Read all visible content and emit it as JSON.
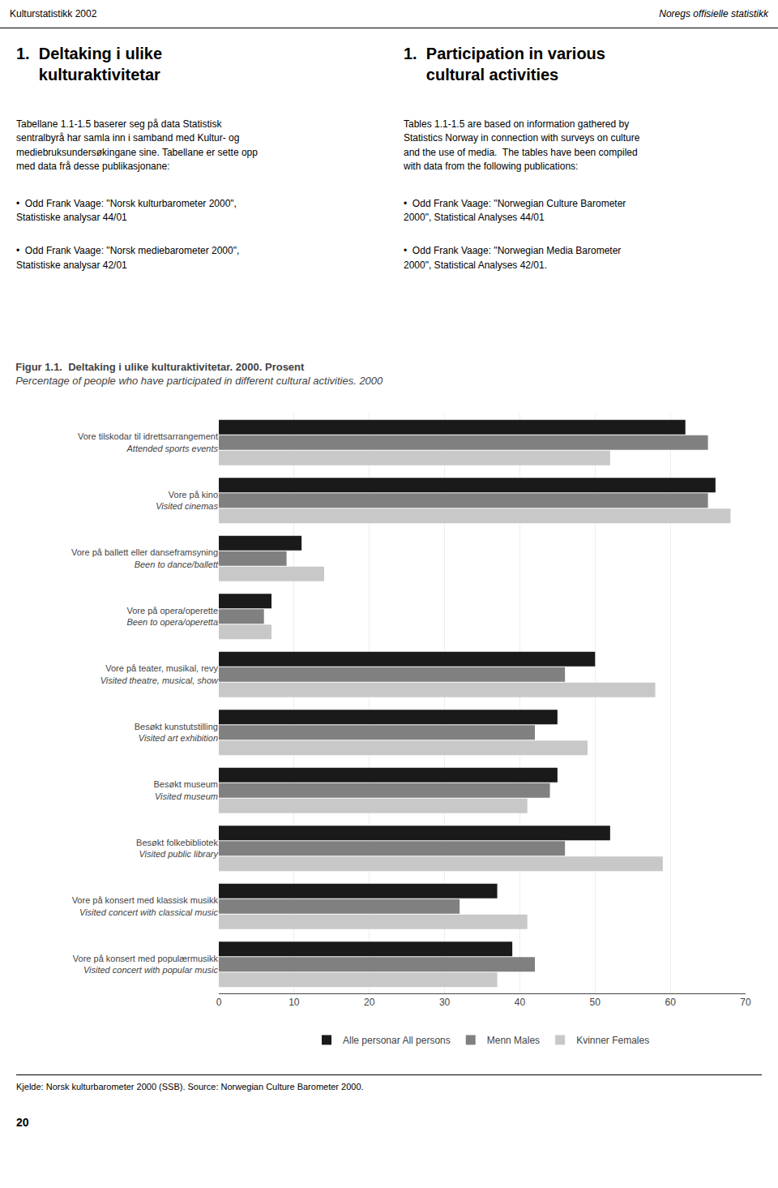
{
  "chart_data": {
    "type": "bar",
    "orientation": "horizontal",
    "title": "Figur 1.1.  Deltaking i ulike kulturaktivitetar. 2000. Prosent",
    "subtitle": "Percentage of people who have participated in different cultural activities. 2000",
    "annotations": [
      "Kulturstatistikk 2002",
      "Noregs offisielle statistikk",
      "1.  Deltaking i ulike\n     kulturaktivitetar",
      "1.  Participation in various\n     cultural activities",
      "Tabellane 1.1-1.5 baserer seg på data Statistisk\nsentralbyrå har samla inn i samband med Kultur- og\nmediebruksundersøkingane sine. Tabellane er sette opp\nmed data frå desse publikasjonane:",
      "Tables 1.1-1.5 are based on information gathered by\nStatistics Norway in connection with surveys on culture\nand the use of media.  The tables have been compiled\nwith data from the following publications:",
      "•  Odd Frank Vaage: \"Norsk kulturbarometer 2000\",\nStatistiske analysar 44/01",
      "•  Odd Frank Vaage: \"Norwegian Culture Barometer\n2000\", Statistical Analyses 44/01",
      "•  Odd Frank Vaage: \"Norsk mediebarometer 2000\",\nStatistiske analysar 42/01",
      "•  Odd Frank Vaage: \"Norwegian Media Barometer\n2000\", Statistical Analyses 42/01.",
      "Kjelde: Norsk kulturbarometer 2000 (SSB). Source: Norwegian Culture Barometer 2000.",
      "20"
    ],
    "categories": [
      "Vore tilskodar til idrettsarrangement\nAttended sports events",
      "Vore på kino\nVisited cinemas",
      "Vore på ballett eller danseframsyning\nBeen to dance/ballett",
      "Vore på opera/operette\nBeen to opera/operetta",
      "Vore på teater, musikal, revy\nVisited theatre, musical, show",
      "Besøkt kunstutstilling\nVisited art exhibition",
      "Besøkt museum\nVisited museum",
      "Besøkt folkebibliotek\nVisited public library",
      "Vore på konsert med klassisk musikk\nVisited concert with classical music",
      "Vore på konsert med populærmusikk\nVisited concert with popular music"
    ],
    "series": [
      {
        "name": "Alle personar All persons",
        "color": "#1a1a1a",
        "values": [
          62,
          66,
          11,
          7,
          50,
          45,
          45,
          52,
          37,
          39
        ]
      },
      {
        "name": "Menn Males",
        "color": "#808080",
        "values": [
          65,
          65,
          9,
          6,
          46,
          42,
          44,
          46,
          32,
          42
        ]
      },
      {
        "name": "Kvinner Females",
        "color": "#c8c8c8",
        "values": [
          52,
          68,
          14,
          7,
          58,
          49,
          41,
          59,
          41,
          37
        ]
      }
    ],
    "xlim": [
      0,
      70
    ],
    "xticks": [
      0,
      10,
      20,
      30,
      40,
      50,
      60,
      70
    ],
    "grid": true
  }
}
